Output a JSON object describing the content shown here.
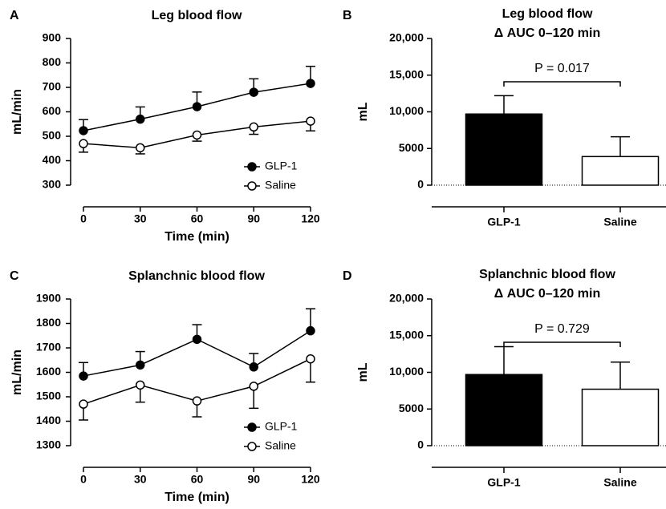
{
  "chart_data": [
    {
      "type": "line",
      "label": "A",
      "title": "Leg blood flow",
      "xlabel": "Time (min)",
      "ylabel": "mL/min",
      "x": [
        0,
        30,
        60,
        90,
        120
      ],
      "xlim": [
        0,
        120
      ],
      "xticks": [
        0,
        30,
        60,
        90,
        120
      ],
      "ylim": [
        300,
        900
      ],
      "yticks": [
        300,
        400,
        500,
        600,
        700,
        800,
        900
      ],
      "legend": "lower right",
      "series": [
        {
          "name": "GLP-1",
          "color": "#000000",
          "fill": "#000000",
          "error_direction": "up",
          "values": [
            523,
            570,
            621,
            680,
            716
          ],
          "errors": [
            45,
            50,
            60,
            55,
            70
          ]
        },
        {
          "name": "Saline",
          "color": "#000000",
          "fill": "#ffffff",
          "error_direction": "down",
          "values": [
            470,
            453,
            505,
            538,
            562
          ],
          "errors": [
            35,
            25,
            25,
            30,
            40
          ]
        }
      ]
    },
    {
      "type": "bar",
      "label": "B",
      "title": "Leg blood flow",
      "subtitle": "Δ AUC 0–120 min",
      "ylabel": "mL",
      "categories": [
        "GLP-1",
        "Saline"
      ],
      "values": [
        9700,
        3900
      ],
      "errors": [
        2500,
        2700
      ],
      "colors": [
        "#000000",
        "#ffffff"
      ],
      "ylim": [
        0,
        20000
      ],
      "yticks": [
        0,
        5000,
        {
          "value": 10000,
          "label": "10,000"
        },
        {
          "value": 15000,
          "label": "15,000"
        },
        {
          "value": 20000,
          "label": "20,000"
        }
      ],
      "annotation": "P = 0.017"
    },
    {
      "type": "line",
      "label": "C",
      "title": "Splanchnic blood flow",
      "xlabel": "Time (min)",
      "ylabel": "mL/min",
      "x": [
        0,
        30,
        60,
        90,
        120
      ],
      "xlim": [
        0,
        120
      ],
      "xticks": [
        0,
        30,
        60,
        90,
        120
      ],
      "ylim": [
        1300,
        1900
      ],
      "yticks": [
        1300,
        1400,
        1500,
        1600,
        1700,
        1800,
        1900
      ],
      "legend": "lower right",
      "series": [
        {
          "name": "GLP-1",
          "color": "#000000",
          "fill": "#000000",
          "error_direction": "up",
          "values": [
            1585,
            1630,
            1735,
            1622,
            1770
          ],
          "errors": [
            55,
            55,
            60,
            55,
            90
          ]
        },
        {
          "name": "Saline",
          "color": "#000000",
          "fill": "#ffffff",
          "error_direction": "down",
          "values": [
            1470,
            1548,
            1483,
            1543,
            1655
          ],
          "errors": [
            65,
            70,
            65,
            90,
            95
          ]
        }
      ]
    },
    {
      "type": "bar",
      "label": "D",
      "title": "Splanchnic blood flow",
      "subtitle": "Δ AUC 0–120 min",
      "ylabel": "mL",
      "categories": [
        "GLP-1",
        "Saline"
      ],
      "values": [
        9700,
        7700
      ],
      "errors": [
        3800,
        3700
      ],
      "colors": [
        "#000000",
        "#ffffff"
      ],
      "ylim": [
        0,
        20000
      ],
      "yticks": [
        0,
        5000,
        {
          "value": 10000,
          "label": "10,000"
        },
        {
          "value": 15000,
          "label": "15,000"
        },
        {
          "value": 20000,
          "label": "20,000"
        }
      ],
      "annotation": "P = 0.729"
    }
  ]
}
